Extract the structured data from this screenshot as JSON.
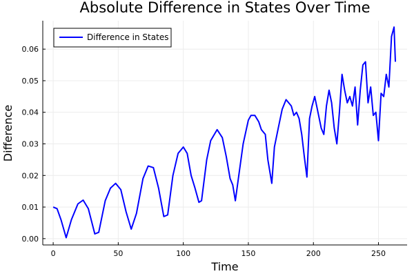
{
  "chart_data": {
    "type": "line",
    "title": "Absolute Difference in States Over Time",
    "xlabel": "Time",
    "ylabel": "Difference",
    "xlim": [
      -8,
      272
    ],
    "ylim": [
      -0.002,
      0.069
    ],
    "xticks": [
      0,
      50,
      100,
      150,
      200,
      250
    ],
    "xtick_labels": [
      "0",
      "50",
      "100",
      "150",
      "200",
      "250"
    ],
    "yticks": [
      0,
      0.01,
      0.02,
      0.03,
      0.04,
      0.05,
      0.06
    ],
    "ytick_labels": [
      "0.00",
      "0.01",
      "0.02",
      "0.03",
      "0.04",
      "0.05",
      "0.06"
    ],
    "grid": true,
    "legend": {
      "position": "top-left"
    },
    "series": [
      {
        "name": "Difference in States",
        "color": "#0000ff",
        "x": [
          0,
          3,
          6,
          10,
          14,
          19,
          23,
          27,
          32,
          35,
          40,
          44,
          48,
          52,
          56,
          60,
          64,
          69,
          73,
          77,
          81,
          85,
          88,
          92,
          96,
          100,
          103,
          106,
          109,
          112,
          114,
          118,
          121,
          126,
          130,
          133,
          136,
          138,
          140,
          143,
          146,
          150,
          152,
          155,
          158,
          160,
          163,
          165,
          168,
          170,
          173,
          176,
          179,
          181,
          183,
          185,
          187,
          189,
          191,
          193,
          195,
          197,
          199,
          201,
          203,
          206,
          208,
          210,
          212,
          214,
          216,
          218,
          220,
          222,
          224,
          226,
          228,
          230,
          232,
          234,
          236,
          238,
          240,
          242,
          244,
          246,
          248,
          250,
          252,
          254,
          256,
          258,
          260,
          262,
          263
        ],
        "y": [
          0.01,
          0.0095,
          0.006,
          0.0003,
          0.006,
          0.011,
          0.0122,
          0.0095,
          0.0015,
          0.002,
          0.012,
          0.016,
          0.0175,
          0.0155,
          0.0085,
          0.003,
          0.008,
          0.019,
          0.023,
          0.0225,
          0.016,
          0.007,
          0.0075,
          0.02,
          0.027,
          0.029,
          0.027,
          0.02,
          0.016,
          0.0115,
          0.012,
          0.025,
          0.031,
          0.0345,
          0.032,
          0.026,
          0.019,
          0.017,
          0.012,
          0.021,
          0.03,
          0.0375,
          0.039,
          0.039,
          0.037,
          0.0345,
          0.033,
          0.025,
          0.0175,
          0.029,
          0.035,
          0.041,
          0.044,
          0.043,
          0.042,
          0.039,
          0.04,
          0.038,
          0.033,
          0.026,
          0.0195,
          0.038,
          0.042,
          0.045,
          0.041,
          0.035,
          0.033,
          0.042,
          0.047,
          0.043,
          0.035,
          0.03,
          0.04,
          0.052,
          0.047,
          0.043,
          0.045,
          0.042,
          0.048,
          0.036,
          0.047,
          0.055,
          0.056,
          0.043,
          0.048,
          0.039,
          0.04,
          0.031,
          0.046,
          0.045,
          0.052,
          0.048,
          0.064,
          0.067,
          0.056
        ]
      }
    ]
  }
}
